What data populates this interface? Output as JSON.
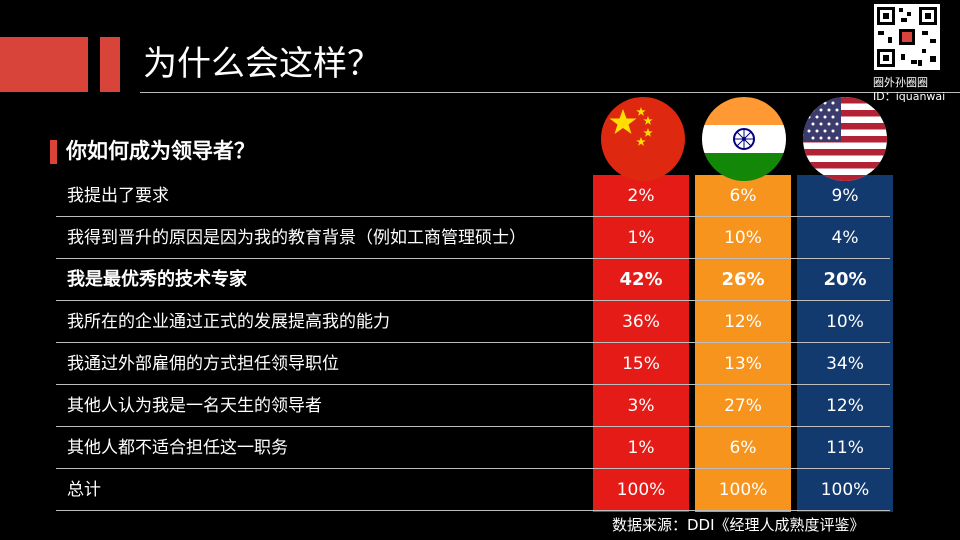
{
  "slide": {
    "title": "为什么会这样？",
    "question": "你如何成为领导者？",
    "source": "数据来源：DDI《经理人成熟度评鉴》",
    "brand": {
      "name": "圈外孙圈圈",
      "id": "ID：iquanwai"
    },
    "colors": {
      "accent": "#d9443a",
      "china": "#e41b17",
      "india": "#f7941d",
      "usa": "#133a6e"
    }
  },
  "chart_data": {
    "type": "table",
    "columns": [
      {
        "country": "China",
        "icon": "china-flag-icon"
      },
      {
        "country": "India",
        "icon": "india-flag-icon"
      },
      {
        "country": "USA",
        "icon": "usa-flag-icon"
      }
    ],
    "rows": [
      {
        "label": "我提出了要求",
        "values": [
          "2%",
          "6%",
          "9%"
        ],
        "bold": false
      },
      {
        "label": "我得到晋升的原因是因为我的教育背景（例如工商管理硕士）",
        "values": [
          "1%",
          "10%",
          "4%"
        ],
        "bold": false
      },
      {
        "label": "我是最优秀的技术专家",
        "values": [
          "42%",
          "26%",
          "20%"
        ],
        "bold": true
      },
      {
        "label": "我所在的企业通过正式的发展提高我的能力",
        "values": [
          "36%",
          "12%",
          "10%"
        ],
        "bold": false
      },
      {
        "label": "我通过外部雇佣的方式担任领导职位",
        "values": [
          "15%",
          "13%",
          "34%"
        ],
        "bold": false
      },
      {
        "label": "其他人认为我是一名天生的领导者",
        "values": [
          "3%",
          "27%",
          "12%"
        ],
        "bold": false
      },
      {
        "label": "其他人都不适合担任这一职务",
        "values": [
          "1%",
          "6%",
          "11%"
        ],
        "bold": false
      },
      {
        "label": "总计",
        "values": [
          "100%",
          "100%",
          "100%"
        ],
        "bold": false
      }
    ]
  }
}
